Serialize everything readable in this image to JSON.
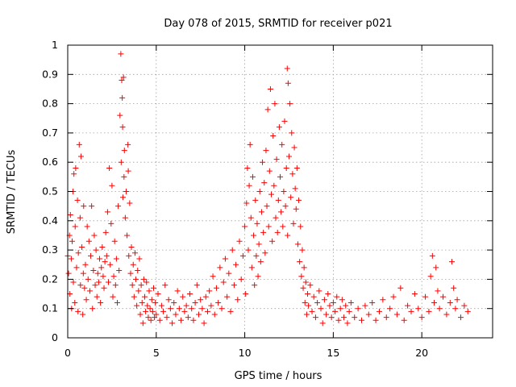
{
  "chart_data": {
    "type": "scatter",
    "title": "Day 078 of 2015, SRMTID for receiver p021",
    "xlabel": "GPS time / hours",
    "ylabel": "SRMTID / TECUs",
    "xlim": [
      0,
      24
    ],
    "ylim": [
      0,
      1
    ],
    "xticks": [
      0,
      5,
      10,
      15,
      20
    ],
    "xtick_labels": [
      "0",
      "5",
      "10",
      "15",
      "20"
    ],
    "yticks": [
      0,
      0.1,
      0.2,
      0.3,
      0.4,
      0.5,
      0.6,
      0.7,
      0.8,
      0.9,
      1
    ],
    "ytick_labels": [
      "0",
      "0.1",
      "0.2",
      "0.3",
      "0.4",
      "0.5",
      "0.6",
      "0.7",
      "0.8",
      "0.9",
      "1"
    ],
    "grid": true,
    "marker": "+",
    "color": "#ff0000",
    "series": [
      {
        "name": "SRMTID",
        "points": [
          [
            0.0,
            0.28
          ],
          [
            0.05,
            0.22
          ],
          [
            0.1,
            0.35
          ],
          [
            0.12,
            0.15
          ],
          [
            0.15,
            0.42
          ],
          [
            0.2,
            0.27
          ],
          [
            0.22,
            0.1
          ],
          [
            0.25,
            0.33
          ],
          [
            0.3,
            0.5
          ],
          [
            0.32,
            0.19
          ],
          [
            0.35,
            0.56
          ],
          [
            0.4,
            0.12
          ],
          [
            0.42,
            0.38
          ],
          [
            0.45,
            0.58
          ],
          [
            0.5,
            0.24
          ],
          [
            0.55,
            0.47
          ],
          [
            0.58,
            0.09
          ],
          [
            0.6,
            0.29
          ],
          [
            0.65,
            0.66
          ],
          [
            0.7,
            0.41
          ],
          [
            0.72,
            0.18
          ],
          [
            0.75,
            0.62
          ],
          [
            0.8,
            0.31
          ],
          [
            0.85,
            0.08
          ],
          [
            0.88,
            0.22
          ],
          [
            0.9,
            0.45
          ],
          [
            0.95,
            0.17
          ],
          [
            1.0,
            0.25
          ],
          [
            1.05,
            0.13
          ],
          [
            1.1,
            0.38
          ],
          [
            1.15,
            0.2
          ],
          [
            1.2,
            0.33
          ],
          [
            1.25,
            0.16
          ],
          [
            1.3,
            0.28
          ],
          [
            1.35,
            0.45
          ],
          [
            1.4,
            0.1
          ],
          [
            1.45,
            0.23
          ],
          [
            1.5,
            0.35
          ],
          [
            1.55,
            0.18
          ],
          [
            1.6,
            0.3
          ],
          [
            1.65,
            0.14
          ],
          [
            1.7,
            0.22
          ],
          [
            1.75,
            0.19
          ],
          [
            1.8,
            0.27
          ],
          [
            1.85,
            0.12
          ],
          [
            1.9,
            0.24
          ],
          [
            1.95,
            0.31
          ],
          [
            2.0,
            0.21
          ],
          [
            2.05,
            0.17
          ],
          [
            2.1,
            0.26
          ],
          [
            2.15,
            0.36
          ],
          [
            2.2,
            0.28
          ],
          [
            2.25,
            0.43
          ],
          [
            2.3,
            0.19
          ],
          [
            2.35,
            0.58
          ],
          [
            2.4,
            0.25
          ],
          [
            2.45,
            0.39
          ],
          [
            2.5,
            0.52
          ],
          [
            2.55,
            0.14
          ],
          [
            2.6,
            0.21
          ],
          [
            2.65,
            0.33
          ],
          [
            2.7,
            0.18
          ],
          [
            2.75,
            0.27
          ],
          [
            2.8,
            0.12
          ],
          [
            2.85,
            0.45
          ],
          [
            2.9,
            0.23
          ],
          [
            2.95,
            0.76
          ],
          [
            3.0,
            0.97
          ],
          [
            3.02,
            0.6
          ],
          [
            3.05,
            0.88
          ],
          [
            3.08,
            0.82
          ],
          [
            3.1,
            0.72
          ],
          [
            3.12,
            0.48
          ],
          [
            3.15,
            0.89
          ],
          [
            3.18,
            0.55
          ],
          [
            3.2,
            0.64
          ],
          [
            3.25,
            0.41
          ],
          [
            3.3,
            0.5
          ],
          [
            3.35,
            0.35
          ],
          [
            3.4,
            0.66
          ],
          [
            3.42,
            0.57
          ],
          [
            3.45,
            0.28
          ],
          [
            3.5,
            0.46
          ],
          [
            3.55,
            0.22
          ],
          [
            3.6,
            0.31
          ],
          [
            3.65,
            0.18
          ],
          [
            3.7,
            0.25
          ],
          [
            3.75,
            0.14
          ],
          [
            3.8,
            0.29
          ],
          [
            3.85,
            0.2
          ],
          [
            3.9,
            0.11
          ],
          [
            3.95,
            0.23
          ],
          [
            4.0,
            0.16
          ],
          [
            4.05,
            0.27
          ],
          [
            4.1,
            0.08
          ],
          [
            4.15,
            0.18
          ],
          [
            4.2,
            0.12
          ],
          [
            4.25,
            0.05
          ],
          [
            4.3,
            0.2
          ],
          [
            4.35,
            0.14
          ],
          [
            4.4,
            0.09
          ],
          [
            4.45,
            0.19
          ],
          [
            4.5,
            0.11
          ],
          [
            4.55,
            0.07
          ],
          [
            4.6,
            0.16
          ],
          [
            4.65,
            0.1
          ],
          [
            4.7,
            0.06
          ],
          [
            4.75,
            0.13
          ],
          [
            4.8,
            0.09
          ],
          [
            4.85,
            0.17
          ],
          [
            4.9,
            0.07
          ],
          [
            4.95,
            0.12
          ],
          [
            5.0,
            0.08
          ],
          [
            5.1,
            0.15
          ],
          [
            5.2,
            0.06
          ],
          [
            5.3,
            0.11
          ],
          [
            5.4,
            0.09
          ],
          [
            5.5,
            0.18
          ],
          [
            5.6,
            0.07
          ],
          [
            5.7,
            0.13
          ],
          [
            5.8,
            0.1
          ],
          [
            5.9,
            0.05
          ],
          [
            6.0,
            0.12
          ],
          [
            6.1,
            0.08
          ],
          [
            6.2,
            0.16
          ],
          [
            6.3,
            0.1
          ],
          [
            6.4,
            0.06
          ],
          [
            6.5,
            0.14
          ],
          [
            6.6,
            0.09
          ],
          [
            6.7,
            0.11
          ],
          [
            6.8,
            0.07
          ],
          [
            6.9,
            0.15
          ],
          [
            7.0,
            0.1
          ],
          [
            7.1,
            0.06
          ],
          [
            7.2,
            0.12
          ],
          [
            7.3,
            0.18
          ],
          [
            7.4,
            0.08
          ],
          [
            7.5,
            0.13
          ],
          [
            7.6,
            0.1
          ],
          [
            7.7,
            0.05
          ],
          [
            7.8,
            0.14
          ],
          [
            7.9,
            0.09
          ],
          [
            8.0,
            0.16
          ],
          [
            8.1,
            0.11
          ],
          [
            8.2,
            0.21
          ],
          [
            8.3,
            0.08
          ],
          [
            8.4,
            0.17
          ],
          [
            8.5,
            0.12
          ],
          [
            8.6,
            0.24
          ],
          [
            8.7,
            0.1
          ],
          [
            8.8,
            0.19
          ],
          [
            8.9,
            0.27
          ],
          [
            9.0,
            0.14
          ],
          [
            9.1,
            0.22
          ],
          [
            9.2,
            0.09
          ],
          [
            9.3,
            0.3
          ],
          [
            9.4,
            0.18
          ],
          [
            9.5,
            0.25
          ],
          [
            9.6,
            0.13
          ],
          [
            9.7,
            0.33
          ],
          [
            9.8,
            0.2
          ],
          [
            9.9,
            0.28
          ],
          [
            10.0,
            0.38
          ],
          [
            10.05,
            0.15
          ],
          [
            10.1,
            0.46
          ],
          [
            10.15,
            0.58
          ],
          [
            10.2,
            0.3
          ],
          [
            10.25,
            0.52
          ],
          [
            10.3,
            0.66
          ],
          [
            10.35,
            0.41
          ],
          [
            10.4,
            0.24
          ],
          [
            10.45,
            0.55
          ],
          [
            10.5,
            0.35
          ],
          [
            10.55,
            0.18
          ],
          [
            10.6,
            0.47
          ],
          [
            10.65,
            0.28
          ],
          [
            10.7,
            0.39
          ],
          [
            10.75,
            0.21
          ],
          [
            10.8,
            0.32
          ],
          [
            10.85,
            0.5
          ],
          [
            10.9,
            0.26
          ],
          [
            10.95,
            0.43
          ],
          [
            11.0,
            0.6
          ],
          [
            11.05,
            0.36
          ],
          [
            11.1,
            0.53
          ],
          [
            11.15,
            0.29
          ],
          [
            11.2,
            0.64
          ],
          [
            11.25,
            0.45
          ],
          [
            11.3,
            0.78
          ],
          [
            11.35,
            0.38
          ],
          [
            11.4,
            0.57
          ],
          [
            11.45,
            0.85
          ],
          [
            11.5,
            0.49
          ],
          [
            11.55,
            0.33
          ],
          [
            11.6,
            0.69
          ],
          [
            11.65,
            0.52
          ],
          [
            11.7,
            0.8
          ],
          [
            11.75,
            0.41
          ],
          [
            11.8,
            0.61
          ],
          [
            11.85,
            0.36
          ],
          [
            11.9,
            0.47
          ],
          [
            11.95,
            0.72
          ],
          [
            12.0,
            0.55
          ],
          [
            12.05,
            0.43
          ],
          [
            12.1,
            0.66
          ],
          [
            12.15,
            0.38
          ],
          [
            12.2,
            0.5
          ],
          [
            12.25,
            0.74
          ],
          [
            12.3,
            0.45
          ],
          [
            12.35,
            0.58
          ],
          [
            12.4,
            0.92
          ],
          [
            12.42,
            0.35
          ],
          [
            12.45,
            0.87
          ],
          [
            12.5,
            0.62
          ],
          [
            12.55,
            0.8
          ],
          [
            12.6,
            0.48
          ],
          [
            12.65,
            0.7
          ],
          [
            12.7,
            0.56
          ],
          [
            12.75,
            0.39
          ],
          [
            12.8,
            0.65
          ],
          [
            12.85,
            0.51
          ],
          [
            12.9,
            0.44
          ],
          [
            12.95,
            0.58
          ],
          [
            13.0,
            0.32
          ],
          [
            13.05,
            0.47
          ],
          [
            13.1,
            0.26
          ],
          [
            13.15,
            0.38
          ],
          [
            13.2,
            0.21
          ],
          [
            13.25,
            0.3
          ],
          [
            13.3,
            0.17
          ],
          [
            13.35,
            0.24
          ],
          [
            13.4,
            0.12
          ],
          [
            13.45,
            0.19
          ],
          [
            13.5,
            0.08
          ],
          [
            13.55,
            0.15
          ],
          [
            13.6,
            0.11
          ],
          [
            13.7,
            0.18
          ],
          [
            13.8,
            0.09
          ],
          [
            13.9,
            0.14
          ],
          [
            14.0,
            0.07
          ],
          [
            14.1,
            0.12
          ],
          [
            14.2,
            0.16
          ],
          [
            14.3,
            0.1
          ],
          [
            14.4,
            0.05
          ],
          [
            14.5,
            0.13
          ],
          [
            14.6,
            0.08
          ],
          [
            14.7,
            0.15
          ],
          [
            14.8,
            0.11
          ],
          [
            14.9,
            0.07
          ],
          [
            15.0,
            0.12
          ],
          [
            15.1,
            0.09
          ],
          [
            15.2,
            0.14
          ],
          [
            15.3,
            0.06
          ],
          [
            15.4,
            0.1
          ],
          [
            15.5,
            0.13
          ],
          [
            15.6,
            0.07
          ],
          [
            15.7,
            0.11
          ],
          [
            15.8,
            0.05
          ],
          [
            15.9,
            0.09
          ],
          [
            16.0,
            0.12
          ],
          [
            16.2,
            0.07
          ],
          [
            16.4,
            0.1
          ],
          [
            16.6,
            0.06
          ],
          [
            16.8,
            0.11
          ],
          [
            17.0,
            0.08
          ],
          [
            17.2,
            0.12
          ],
          [
            17.4,
            0.06
          ],
          [
            17.6,
            0.09
          ],
          [
            17.8,
            0.13
          ],
          [
            18.0,
            0.07
          ],
          [
            18.2,
            0.1
          ],
          [
            18.4,
            0.14
          ],
          [
            18.6,
            0.08
          ],
          [
            18.8,
            0.17
          ],
          [
            19.0,
            0.06
          ],
          [
            19.2,
            0.11
          ],
          [
            19.4,
            0.09
          ],
          [
            19.6,
            0.15
          ],
          [
            19.8,
            0.1
          ],
          [
            20.0,
            0.07
          ],
          [
            20.2,
            0.14
          ],
          [
            20.4,
            0.09
          ],
          [
            20.5,
            0.21
          ],
          [
            20.6,
            0.28
          ],
          [
            20.7,
            0.12
          ],
          [
            20.8,
            0.24
          ],
          [
            20.9,
            0.16
          ],
          [
            21.0,
            0.1
          ],
          [
            21.2,
            0.14
          ],
          [
            21.4,
            0.08
          ],
          [
            21.6,
            0.12
          ],
          [
            21.7,
            0.26
          ],
          [
            21.8,
            0.17
          ],
          [
            21.9,
            0.1
          ],
          [
            22.0,
            0.13
          ],
          [
            22.2,
            0.07
          ],
          [
            22.4,
            0.11
          ],
          [
            22.6,
            0.09
          ]
        ]
      }
    ]
  }
}
